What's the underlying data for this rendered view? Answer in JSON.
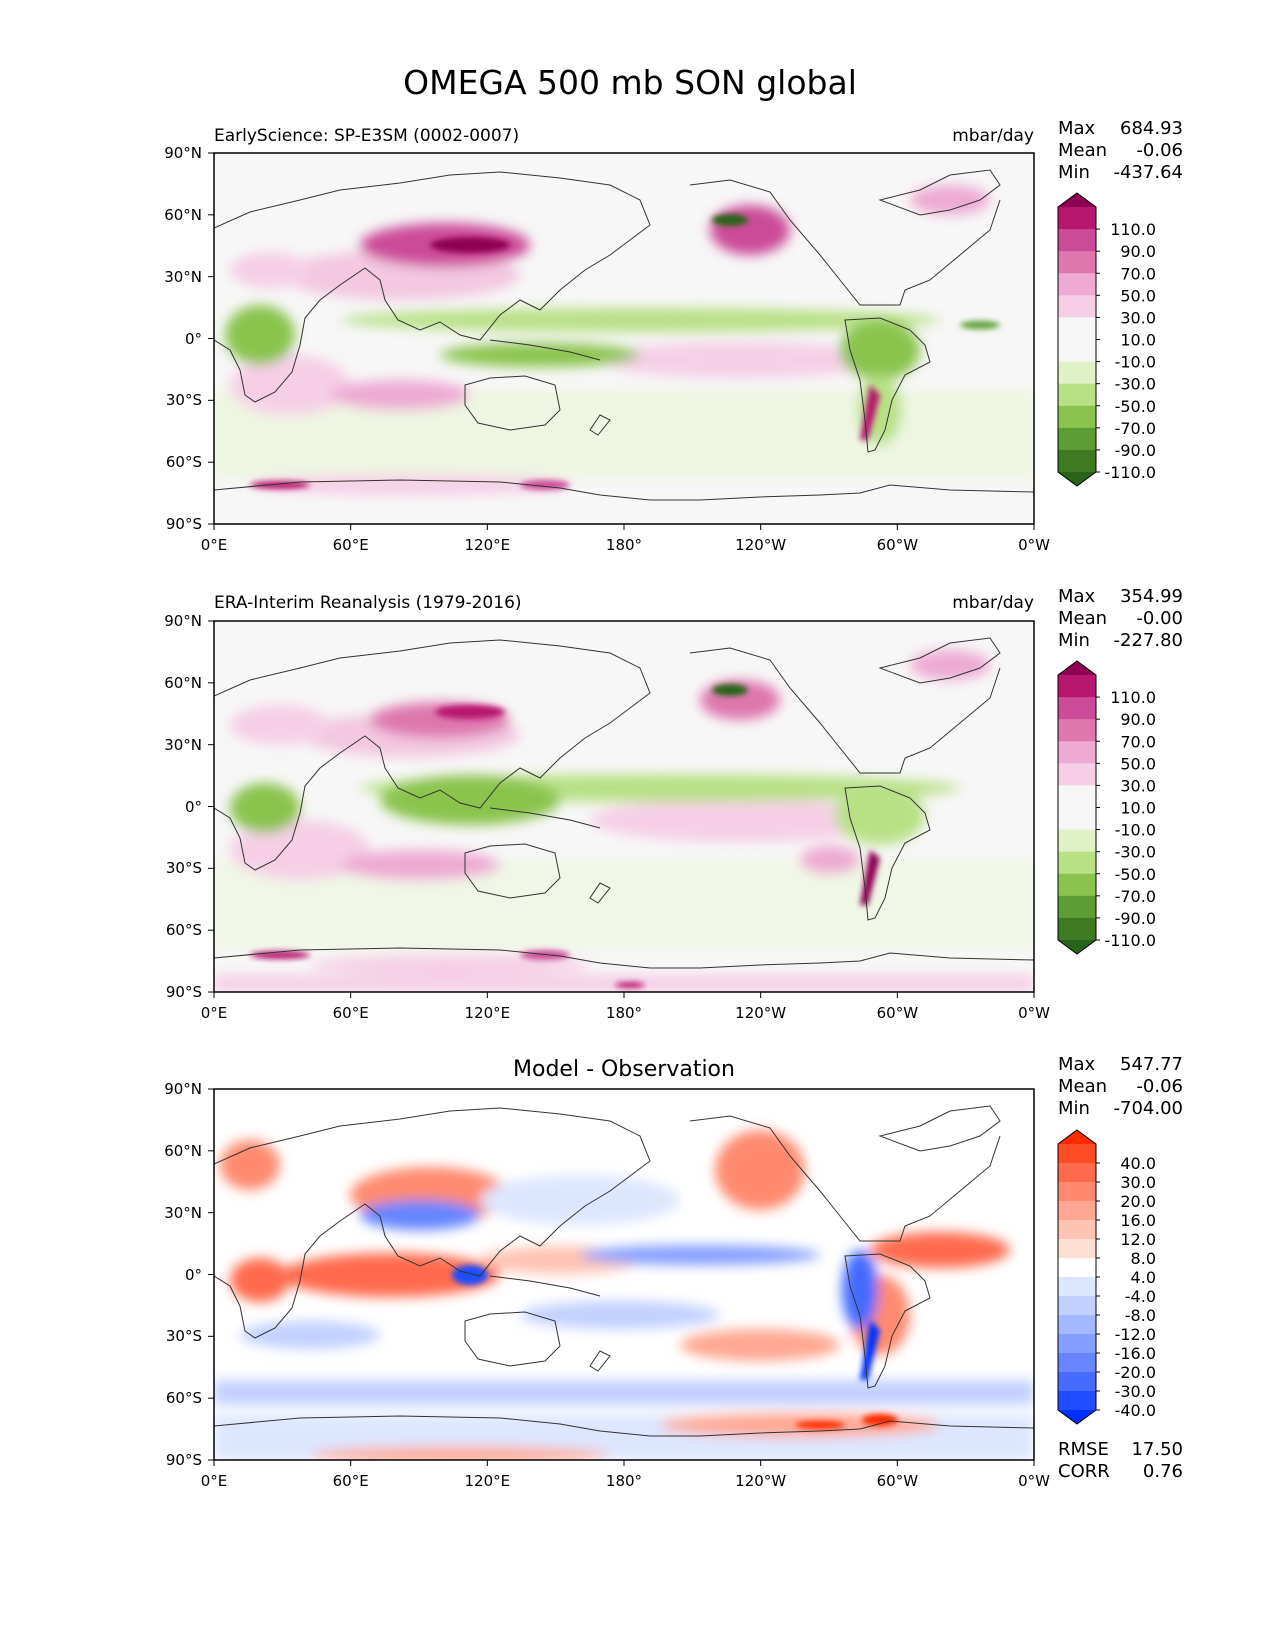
{
  "figure": {
    "title": "OMEGA 500 mb SON global"
  },
  "axes": {
    "x_ticks": [
      "0°E",
      "60°E",
      "120°E",
      "180°",
      "120°W",
      "60°W",
      "0°W"
    ],
    "y_ticks": [
      "90°N",
      "60°N",
      "30°N",
      "0°",
      "30°S",
      "60°S",
      "90°S"
    ]
  },
  "chart_data": [
    {
      "type": "heatmap",
      "panel": "test",
      "title_left": "EarlyScience: SP-E3SM (0002-0007)",
      "units": "mbar/day",
      "stats": {
        "max_label": "Max",
        "max": "684.93",
        "mean_label": "Mean",
        "mean": "-0.06",
        "min_label": "Min",
        "min": "-437.64"
      },
      "colorbar": {
        "labels": [
          "110.0",
          "90.0",
          "70.0",
          "50.0",
          "30.0",
          "10.0",
          "-10.0",
          "-30.0",
          "-50.0",
          "-70.0",
          "-90.0",
          "-110.0"
        ],
        "colors": [
          "#8e0152",
          "#b7166e",
          "#cc4b99",
          "#de77ae",
          "#eeaad3",
          "#f6cfe6",
          "#f7f7f7",
          "#f7f7f7",
          "#e0f1c8",
          "#b8e186",
          "#8ac44e",
          "#5c9e33",
          "#3d7a22",
          "#276419"
        ]
      },
      "xlim": [
        0,
        360
      ],
      "ylim": [
        -90,
        90
      ]
    },
    {
      "type": "heatmap",
      "panel": "reference",
      "title_left": "ERA-Interim Reanalysis (1979-2016)",
      "units": "mbar/day",
      "stats": {
        "max_label": "Max",
        "max": "354.99",
        "mean_label": "Mean",
        "mean": "-0.00",
        "min_label": "Min",
        "min": "-227.80"
      },
      "colorbar": {
        "labels": [
          "110.0",
          "90.0",
          "70.0",
          "50.0",
          "30.0",
          "10.0",
          "-10.0",
          "-30.0",
          "-50.0",
          "-70.0",
          "-90.0",
          "-110.0"
        ],
        "colors": [
          "#8e0152",
          "#b7166e",
          "#cc4b99",
          "#de77ae",
          "#eeaad3",
          "#f6cfe6",
          "#f7f7f7",
          "#f7f7f7",
          "#e0f1c8",
          "#b8e186",
          "#8ac44e",
          "#5c9e33",
          "#3d7a22",
          "#276419"
        ]
      },
      "xlim": [
        0,
        360
      ],
      "ylim": [
        -90,
        90
      ]
    },
    {
      "type": "heatmap",
      "panel": "difference",
      "title_center": "Model - Observation",
      "stats": {
        "max_label": "Max",
        "max": "547.77",
        "mean_label": "Mean",
        "mean": "-0.06",
        "min_label": "Min",
        "min": "-704.00"
      },
      "metrics": {
        "rmse_label": "RMSE",
        "rmse": "17.50",
        "corr_label": "CORR",
        "corr": "0.76"
      },
      "colorbar": {
        "labels": [
          "40.0",
          "30.0",
          "20.0",
          "16.0",
          "12.0",
          "8.0",
          "4.0",
          "-4.0",
          "-8.0",
          "-12.0",
          "-16.0",
          "-20.0",
          "-30.0",
          "-40.0"
        ],
        "colors": [
          "#ff2a00",
          "#ff4a26",
          "#ff6a4d",
          "#ff8a70",
          "#ffa792",
          "#ffc3b3",
          "#ffdfd4",
          "#ffffff",
          "#dde6ff",
          "#c1d0ff",
          "#a3b8ff",
          "#859fff",
          "#6685ff",
          "#456bff",
          "#1f4dff",
          "#0030ff"
        ]
      },
      "xlim": [
        0,
        360
      ],
      "ylim": [
        -90,
        90
      ]
    }
  ]
}
